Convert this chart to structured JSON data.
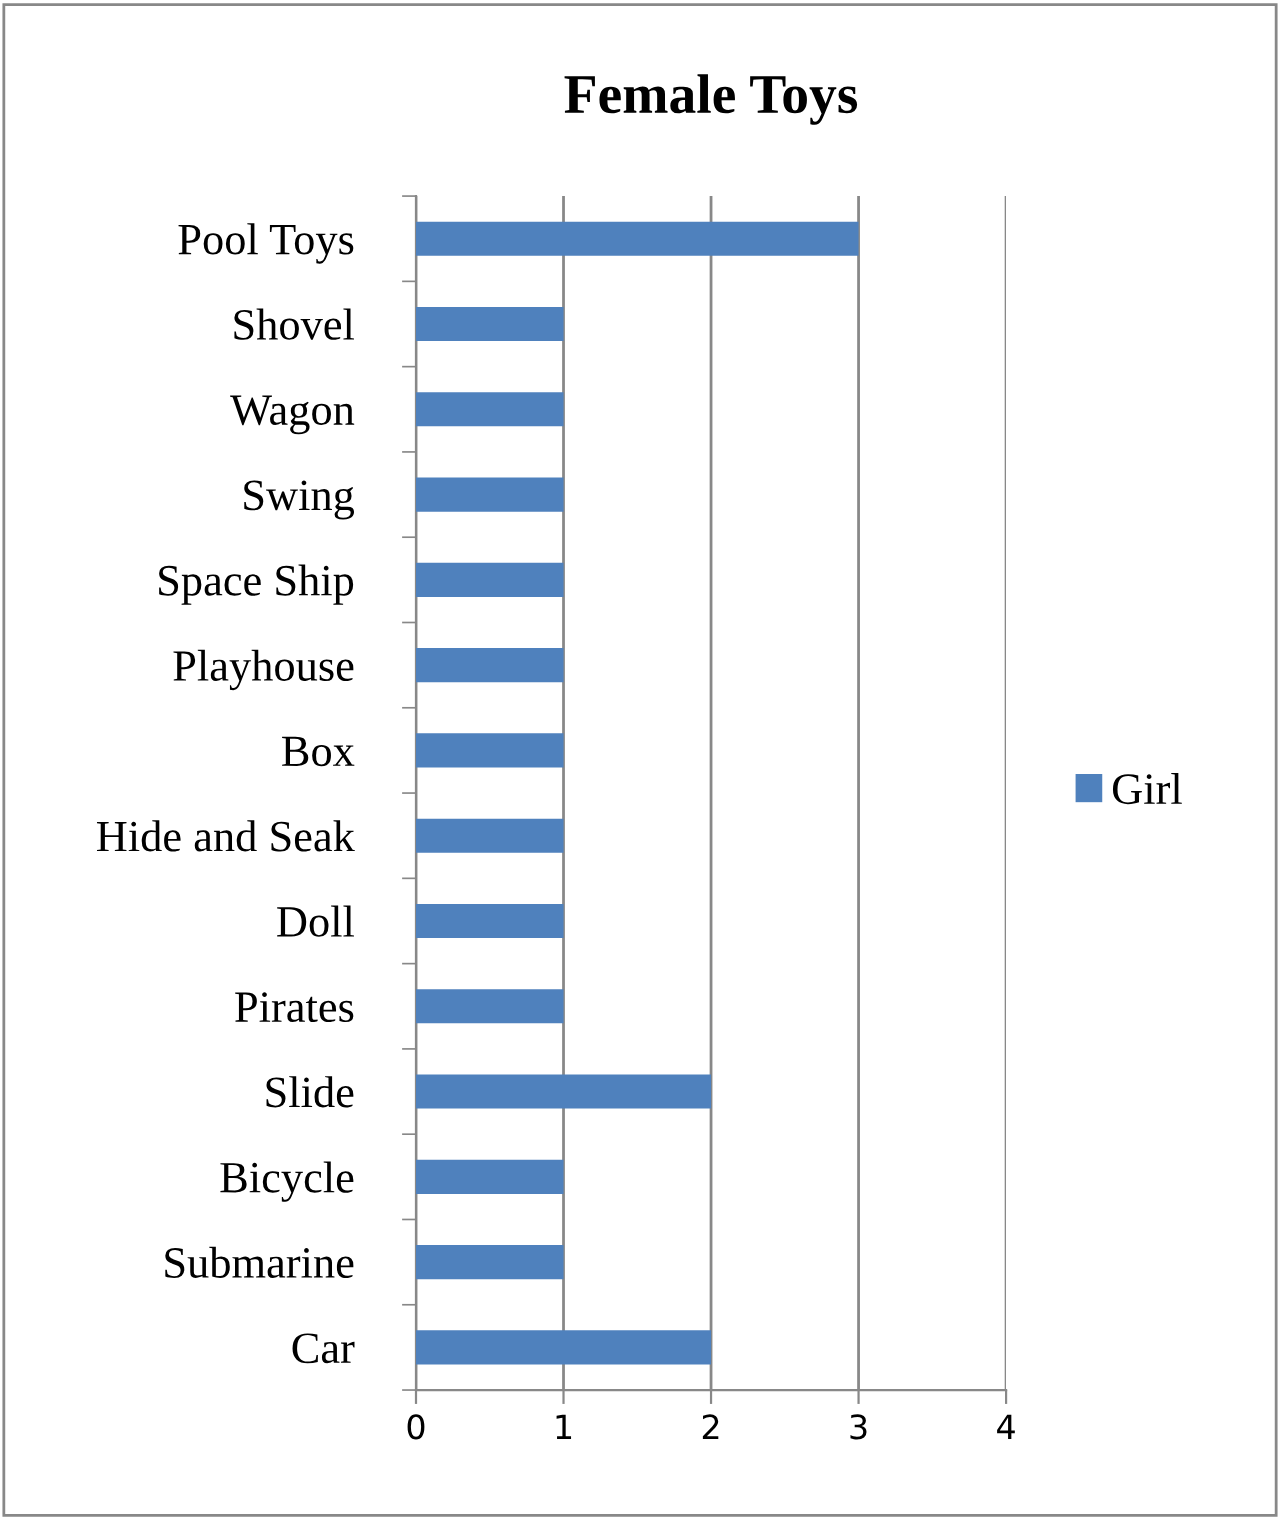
{
  "chart_data": {
    "type": "bar",
    "orientation": "horizontal",
    "title": "Female Toys",
    "categories": [
      "Pool Toys",
      "Shovel",
      "Wagon",
      "Swing",
      "Space Ship",
      "Playhouse",
      "Box",
      "Hide and Seak",
      "Doll",
      "Pirates",
      "Slide",
      "Bicycle",
      "Submarine",
      "Car"
    ],
    "series": [
      {
        "name": "Girl",
        "color": "#4f81bd",
        "values": [
          3,
          1,
          1,
          1,
          1,
          1,
          1,
          1,
          1,
          1,
          2,
          1,
          1,
          2
        ]
      }
    ],
    "xlim": [
      0,
      4
    ],
    "xticks": [
      0,
      1,
      2,
      3,
      4
    ],
    "grid": "x",
    "legend": "right"
  }
}
